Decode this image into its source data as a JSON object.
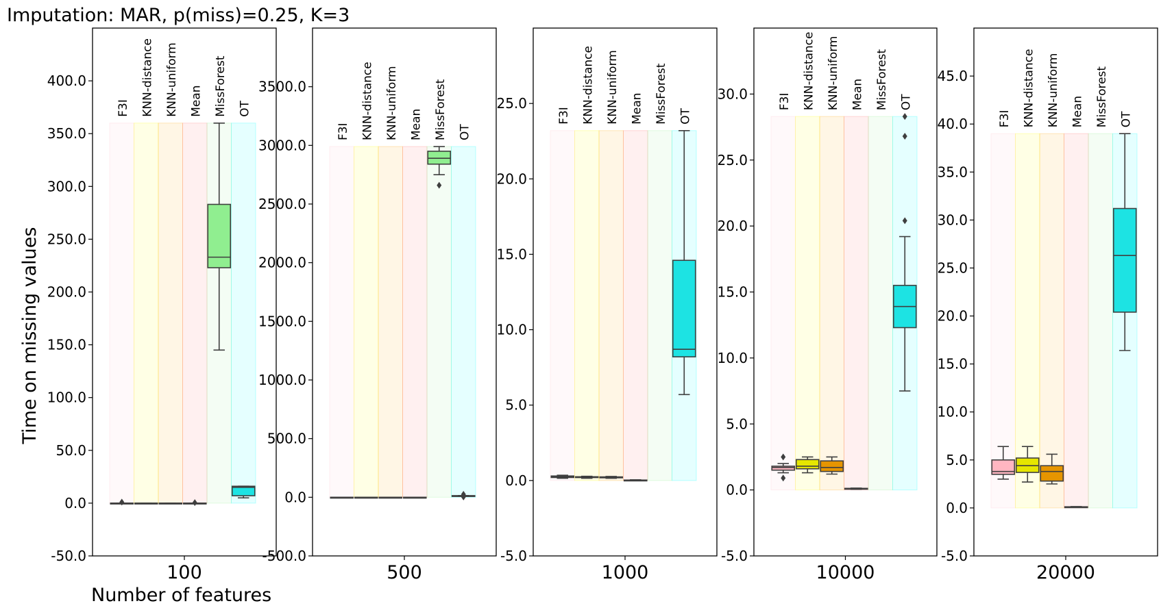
{
  "chart_data": {
    "type": "box",
    "title": "Imputation: MAR, p(miss)=0.25, K=3",
    "ylabel": "Time on missing values",
    "xlabel": "Number of features",
    "methods": [
      "F3I",
      "KNN-distance",
      "KNN-uniform",
      "Mean",
      "MissForest",
      "OT"
    ],
    "method_colors": [
      "#ffc0cb",
      "#ffff00",
      "#ffa500",
      "#ff6b6b",
      "#90ee90",
      "#00ffff"
    ],
    "box_colors": [
      "#ffb6c1",
      "#e6e600",
      "#e69500",
      "#ff6b6b",
      "#90ee90",
      "#1de3e3"
    ],
    "panels": [
      {
        "category": "100",
        "ylim": [
          -50,
          450
        ],
        "yticks": [
          -50,
          0,
          50,
          100,
          150,
          200,
          250,
          300,
          350,
          400
        ],
        "ytick_labels": [
          "-50.0",
          "0.0",
          "50.0",
          "100.0",
          "150.0",
          "200.0",
          "250.0",
          "300.0",
          "350.0",
          "400.0"
        ],
        "shade_top": 360,
        "boxes": [
          {
            "method": "F3I",
            "whislo": 0,
            "q1": 0,
            "med": 0,
            "q3": 0,
            "whishi": 0,
            "fliers": [
              1
            ]
          },
          {
            "method": "KNN-distance",
            "whislo": 0,
            "q1": 0,
            "med": 0,
            "q3": 0,
            "whishi": 0,
            "fliers": []
          },
          {
            "method": "KNN-uniform",
            "whislo": 0,
            "q1": 0,
            "med": 0,
            "q3": 0,
            "whishi": 0,
            "fliers": []
          },
          {
            "method": "Mean",
            "whislo": 0,
            "q1": 0,
            "med": 0,
            "q3": 0,
            "whishi": 0,
            "fliers": [
              0.5
            ]
          },
          {
            "method": "MissForest",
            "whislo": 145,
            "q1": 223,
            "med": 233,
            "q3": 283,
            "whishi": 360,
            "fliers": []
          },
          {
            "method": "OT",
            "whislo": 5,
            "q1": 7,
            "med": 15,
            "q3": 16,
            "whishi": 16,
            "fliers": []
          }
        ]
      },
      {
        "category": "500",
        "ylim": [
          -500,
          4000
        ],
        "yticks": [
          -500,
          0,
          500,
          1000,
          1500,
          2000,
          2500,
          3000,
          3500
        ],
        "ytick_labels": [
          "-500.0",
          "0.0",
          "500.0",
          "1000.0",
          "1500.0",
          "2000.0",
          "2500.0",
          "3000.0",
          "3500.0"
        ],
        "shade_top": 2990,
        "boxes": [
          {
            "method": "F3I",
            "whislo": 0,
            "q1": 0,
            "med": 0,
            "q3": 0,
            "whishi": 0,
            "fliers": []
          },
          {
            "method": "KNN-distance",
            "whislo": 0,
            "q1": 0,
            "med": 0,
            "q3": 0,
            "whishi": 0,
            "fliers": []
          },
          {
            "method": "KNN-uniform",
            "whislo": 0,
            "q1": 0,
            "med": 0,
            "q3": 0,
            "whishi": 0,
            "fliers": []
          },
          {
            "method": "Mean",
            "whislo": 0,
            "q1": 0,
            "med": 0,
            "q3": 0,
            "whishi": 0,
            "fliers": []
          },
          {
            "method": "MissForest",
            "whislo": 2750,
            "q1": 2840,
            "med": 2890,
            "q3": 2950,
            "whishi": 2990,
            "fliers": [
              2660
            ]
          },
          {
            "method": "OT",
            "whislo": 8,
            "q1": 10,
            "med": 12,
            "q3": 14,
            "whishi": 15,
            "fliers": [
              25,
              3
            ]
          }
        ]
      },
      {
        "category": "1000",
        "ylim": [
          -5,
          30
        ],
        "yticks": [
          -5,
          0,
          5,
          10,
          15,
          20,
          25
        ],
        "ytick_labels": [
          "-5.0",
          "0.0",
          "5.0",
          "10.0",
          "15.0",
          "20.0",
          "25.0"
        ],
        "shade_top": 23.2,
        "boxes": [
          {
            "method": "F3I",
            "whislo": 0.15,
            "q1": 0.2,
            "med": 0.25,
            "q3": 0.3,
            "whishi": 0.35,
            "fliers": []
          },
          {
            "method": "KNN-distance",
            "whislo": 0.15,
            "q1": 0.2,
            "med": 0.22,
            "q3": 0.25,
            "whishi": 0.28,
            "fliers": []
          },
          {
            "method": "KNN-uniform",
            "whislo": 0.15,
            "q1": 0.18,
            "med": 0.2,
            "q3": 0.24,
            "whishi": 0.27,
            "fliers": []
          },
          {
            "method": "Mean",
            "whislo": 0,
            "q1": 0,
            "med": 0.02,
            "q3": 0.03,
            "whishi": 0.05,
            "fliers": []
          },
          {
            "method": "MissForest",
            "whislo": null,
            "q1": null,
            "med": null,
            "q3": null,
            "whishi": null,
            "fliers": []
          },
          {
            "method": "OT",
            "whislo": 5.7,
            "q1": 8.2,
            "med": 8.7,
            "q3": 14.6,
            "whishi": 23.2,
            "fliers": []
          }
        ]
      },
      {
        "category": "10000",
        "ylim": [
          -5,
          35
        ],
        "yticks": [
          -5,
          0,
          5,
          10,
          15,
          20,
          25,
          30
        ],
        "ytick_labels": [
          "-5.0",
          "0.0",
          "5.0",
          "10.0",
          "15.0",
          "20.0",
          "25.0",
          "30.0"
        ],
        "shade_top": 28.3,
        "boxes": [
          {
            "method": "F3I",
            "whislo": 1.3,
            "q1": 1.5,
            "med": 1.7,
            "q3": 1.8,
            "whishi": 2.0,
            "fliers": [
              2.5,
              0.9
            ]
          },
          {
            "method": "KNN-distance",
            "whislo": 1.3,
            "q1": 1.6,
            "med": 1.8,
            "q3": 2.3,
            "whishi": 2.5,
            "fliers": []
          },
          {
            "method": "KNN-uniform",
            "whislo": 1.2,
            "q1": 1.4,
            "med": 1.7,
            "q3": 2.2,
            "whishi": 2.5,
            "fliers": []
          },
          {
            "method": "Mean",
            "whislo": 0.05,
            "q1": 0.07,
            "med": 0.1,
            "q3": 0.12,
            "whishi": 0.14,
            "fliers": []
          },
          {
            "method": "MissForest",
            "whislo": null,
            "q1": null,
            "med": null,
            "q3": null,
            "whishi": null,
            "fliers": []
          },
          {
            "method": "OT",
            "whislo": 7.5,
            "q1": 12.3,
            "med": 13.9,
            "q3": 15.5,
            "whishi": 19.2,
            "fliers": [
              28.3,
              26.8,
              20.4
            ]
          }
        ]
      },
      {
        "category": "20000",
        "ylim": [
          -5,
          50
        ],
        "yticks": [
          -5,
          0,
          5,
          10,
          15,
          20,
          25,
          30,
          35,
          40,
          45
        ],
        "ytick_labels": [
          "-5.0",
          "0.0",
          "5.0",
          "10.0",
          "15.0",
          "20.0",
          "25.0",
          "30.0",
          "35.0",
          "40.0",
          "45.0"
        ],
        "shade_top": 39,
        "boxes": [
          {
            "method": "F3I",
            "whislo": 3.0,
            "q1": 3.5,
            "med": 3.8,
            "q3": 5.0,
            "whishi": 6.4,
            "fliers": []
          },
          {
            "method": "KNN-distance",
            "whislo": 2.7,
            "q1": 3.7,
            "med": 4.4,
            "q3": 5.2,
            "whishi": 6.4,
            "fliers": []
          },
          {
            "method": "KNN-uniform",
            "whislo": 2.5,
            "q1": 2.8,
            "med": 3.8,
            "q3": 4.4,
            "whishi": 5.6,
            "fliers": []
          },
          {
            "method": "Mean",
            "whislo": 0.05,
            "q1": 0.07,
            "med": 0.1,
            "q3": 0.12,
            "whishi": 0.14,
            "fliers": []
          },
          {
            "method": "MissForest",
            "whislo": null,
            "q1": null,
            "med": null,
            "q3": null,
            "whishi": null,
            "fliers": []
          },
          {
            "method": "OT",
            "whislo": 16.4,
            "q1": 20.4,
            "med": 26.3,
            "q3": 31.2,
            "whishi": 39,
            "fliers": []
          }
        ]
      }
    ]
  }
}
